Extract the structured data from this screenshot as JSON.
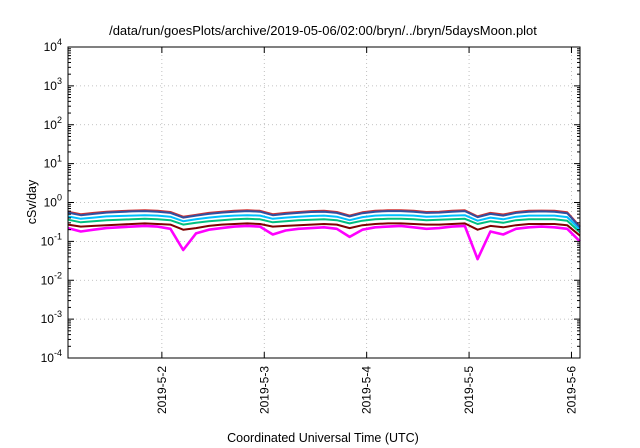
{
  "chart_data": {
    "type": "line",
    "title": "/data/run/goesPlots/archive/2019-05-06/02:00/bryn/../bryn/5daysMoon.plot",
    "xlabel": "Coordinated Universal Time (UTC)",
    "ylabel": "cSv/day",
    "yscale": "log",
    "ylim": [
      0.0001,
      10000
    ],
    "xlim": [
      "2019-05-01T02:00",
      "2019-05-06T02:00"
    ],
    "grid": true,
    "y_ticks": [
      {
        "base": "10",
        "exp": "4"
      },
      {
        "base": "10",
        "exp": "3"
      },
      {
        "base": "10",
        "exp": "2"
      },
      {
        "base": "10",
        "exp": "1"
      },
      {
        "base": "10",
        "exp": "0"
      },
      {
        "base": "10",
        "exp": "-1"
      },
      {
        "base": "10",
        "exp": "-2"
      },
      {
        "base": "10",
        "exp": "-3"
      },
      {
        "base": "10",
        "exp": "-4"
      }
    ],
    "x_ticks": [
      "2019-5-2",
      "2019-5-3",
      "2019-5-4",
      "2019-5-5",
      "2019-5-6"
    ],
    "x": [
      "2019-05-01T02:00",
      "2019-05-01T05:00",
      "2019-05-01T08:00",
      "2019-05-01T11:00",
      "2019-05-01T14:00",
      "2019-05-01T17:00",
      "2019-05-01T20:00",
      "2019-05-01T23:00",
      "2019-05-02T02:00",
      "2019-05-02T05:00",
      "2019-05-02T08:00",
      "2019-05-02T11:00",
      "2019-05-02T14:00",
      "2019-05-02T17:00",
      "2019-05-02T20:00",
      "2019-05-02T23:00",
      "2019-05-03T02:00",
      "2019-05-03T05:00",
      "2019-05-03T08:00",
      "2019-05-03T11:00",
      "2019-05-03T14:00",
      "2019-05-03T17:00",
      "2019-05-03T20:00",
      "2019-05-03T23:00",
      "2019-05-04T02:00",
      "2019-05-04T05:00",
      "2019-05-04T08:00",
      "2019-05-04T11:00",
      "2019-05-04T14:00",
      "2019-05-04T17:00",
      "2019-05-04T20:00",
      "2019-05-04T23:00",
      "2019-05-05T02:00",
      "2019-05-05T05:00",
      "2019-05-05T08:00",
      "2019-05-05T11:00",
      "2019-05-05T14:00",
      "2019-05-05T17:00",
      "2019-05-05T20:00",
      "2019-05-05T23:00",
      "2019-05-06T02:00"
    ],
    "series": [
      {
        "color": "#ff00ff",
        "values": [
          0.22,
          0.18,
          0.2,
          0.22,
          0.23,
          0.24,
          0.25,
          0.24,
          0.21,
          0.06,
          0.16,
          0.2,
          0.22,
          0.24,
          0.25,
          0.24,
          0.15,
          0.19,
          0.21,
          0.22,
          0.23,
          0.21,
          0.13,
          0.2,
          0.23,
          0.24,
          0.25,
          0.23,
          0.21,
          0.22,
          0.24,
          0.25,
          0.035,
          0.18,
          0.15,
          0.21,
          0.23,
          0.24,
          0.23,
          0.21,
          0.1
        ]
      },
      {
        "color": "#800000",
        "values": [
          0.27,
          0.24,
          0.25,
          0.26,
          0.27,
          0.28,
          0.29,
          0.28,
          0.27,
          0.2,
          0.22,
          0.25,
          0.27,
          0.28,
          0.29,
          0.28,
          0.24,
          0.25,
          0.26,
          0.27,
          0.28,
          0.27,
          0.22,
          0.26,
          0.28,
          0.29,
          0.29,
          0.28,
          0.27,
          0.27,
          0.28,
          0.29,
          0.2,
          0.25,
          0.23,
          0.26,
          0.28,
          0.28,
          0.28,
          0.26,
          0.14
        ]
      },
      {
        "color": "#00c080",
        "values": [
          0.36,
          0.31,
          0.33,
          0.35,
          0.36,
          0.37,
          0.38,
          0.37,
          0.35,
          0.27,
          0.3,
          0.33,
          0.35,
          0.37,
          0.38,
          0.37,
          0.31,
          0.33,
          0.35,
          0.36,
          0.37,
          0.35,
          0.29,
          0.34,
          0.37,
          0.38,
          0.38,
          0.37,
          0.35,
          0.36,
          0.37,
          0.38,
          0.28,
          0.33,
          0.3,
          0.35,
          0.37,
          0.37,
          0.37,
          0.34,
          0.17
        ]
      },
      {
        "color": "#00c0ff",
        "values": [
          0.44,
          0.38,
          0.41,
          0.44,
          0.45,
          0.46,
          0.47,
          0.46,
          0.43,
          0.33,
          0.37,
          0.41,
          0.44,
          0.46,
          0.47,
          0.46,
          0.38,
          0.41,
          0.43,
          0.45,
          0.46,
          0.43,
          0.35,
          0.42,
          0.46,
          0.47,
          0.47,
          0.46,
          0.43,
          0.44,
          0.46,
          0.47,
          0.34,
          0.41,
          0.37,
          0.43,
          0.46,
          0.46,
          0.46,
          0.42,
          0.2
        ]
      },
      {
        "color": "#d03030",
        "values": [
          0.58,
          0.5,
          0.54,
          0.58,
          0.6,
          0.62,
          0.63,
          0.61,
          0.57,
          0.43,
          0.48,
          0.54,
          0.58,
          0.61,
          0.63,
          0.61,
          0.5,
          0.54,
          0.57,
          0.6,
          0.61,
          0.57,
          0.46,
          0.56,
          0.61,
          0.63,
          0.63,
          0.61,
          0.57,
          0.58,
          0.61,
          0.63,
          0.44,
          0.54,
          0.49,
          0.57,
          0.61,
          0.62,
          0.61,
          0.56,
          0.24
        ]
      },
      {
        "color": "#3050a0",
        "values": [
          0.55,
          0.47,
          0.51,
          0.55,
          0.57,
          0.59,
          0.6,
          0.58,
          0.54,
          0.41,
          0.46,
          0.51,
          0.55,
          0.58,
          0.6,
          0.58,
          0.47,
          0.51,
          0.54,
          0.57,
          0.58,
          0.54,
          0.44,
          0.53,
          0.58,
          0.6,
          0.6,
          0.58,
          0.54,
          0.55,
          0.58,
          0.6,
          0.42,
          0.51,
          0.46,
          0.54,
          0.58,
          0.59,
          0.58,
          0.53,
          0.23
        ]
      }
    ]
  }
}
